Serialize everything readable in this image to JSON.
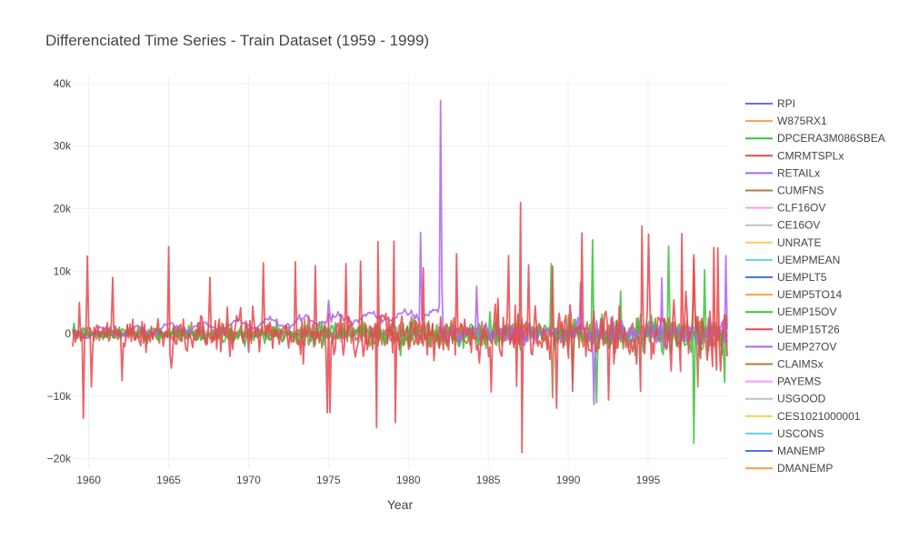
{
  "chart_data": {
    "type": "line",
    "title": "Differenciated Time Series - Train Dataset (1959 - 1999)",
    "xlabel": "Year",
    "ylabel": "",
    "xlim": [
      1959.0,
      1999.95
    ],
    "ylim": [
      -21500,
      41000
    ],
    "x_ticks": [
      {
        "value": 1960,
        "label": "1960"
      },
      {
        "value": 1965,
        "label": "1965"
      },
      {
        "value": 1970,
        "label": "1970"
      },
      {
        "value": 1975,
        "label": "1975"
      },
      {
        "value": 1980,
        "label": "1980"
      },
      {
        "value": 1985,
        "label": "1985"
      },
      {
        "value": 1990,
        "label": "1990"
      },
      {
        "value": 1995,
        "label": "1995"
      }
    ],
    "y_ticks": [
      {
        "value": -20000,
        "label": "−20k"
      },
      {
        "value": -10000,
        "label": "−10k"
      },
      {
        "value": 0,
        "label": "0"
      },
      {
        "value": 10000,
        "label": "10k"
      },
      {
        "value": 20000,
        "label": "20k"
      },
      {
        "value": 30000,
        "label": "30k"
      },
      {
        "value": 40000,
        "label": "40k"
      }
    ],
    "grid": true,
    "legend_position": "right",
    "series": [
      {
        "name": "RPI",
        "color": "#636efa",
        "amplitude": 60,
        "points": []
      },
      {
        "name": "W875RX1",
        "color": "#fba04a",
        "amplitude": 60,
        "points": []
      },
      {
        "name": "DPCERA3M086SBEA",
        "color": "#3cc13c",
        "amplitude": 2500,
        "points": [
          {
            "x": 1988.9,
            "y": 11200
          },
          {
            "x": 1991.5,
            "y": 15000
          },
          {
            "x": 1991.8,
            "y": -11000
          },
          {
            "x": 1996.3,
            "y": 14000
          },
          {
            "x": 1997.9,
            "y": -17500
          },
          {
            "x": 1999.8,
            "y": -7800
          },
          {
            "x": 1979.5,
            "y": -3500
          },
          {
            "x": 1985.6,
            "y": 4500
          },
          {
            "x": 1993.3,
            "y": 6800
          },
          {
            "x": 1998.5,
            "y": 10200
          },
          {
            "x": 1990.3,
            "y": -7600
          }
        ]
      },
      {
        "name": "CMRMTSPLx",
        "color": "#e8484c",
        "amplitude": 4500,
        "points": [
          {
            "x": 1959.4,
            "y": 5000
          },
          {
            "x": 1959.7,
            "y": -13500
          },
          {
            "x": 1959.9,
            "y": 12400
          },
          {
            "x": 1960.2,
            "y": -8500
          },
          {
            "x": 1961.5,
            "y": 9000
          },
          {
            "x": 1962.1,
            "y": -7500
          },
          {
            "x": 1965.0,
            "y": 13900
          },
          {
            "x": 1965.2,
            "y": -5500
          },
          {
            "x": 1967.6,
            "y": 9000
          },
          {
            "x": 1970.9,
            "y": 11300
          },
          {
            "x": 1972.9,
            "y": 11500
          },
          {
            "x": 1974.2,
            "y": 10900
          },
          {
            "x": 1974.9,
            "y": -12600
          },
          {
            "x": 1975.1,
            "y": -12600
          },
          {
            "x": 1976.1,
            "y": 11200
          },
          {
            "x": 1977.0,
            "y": 11600
          },
          {
            "x": 1978.0,
            "y": -15000
          },
          {
            "x": 1978.1,
            "y": 14700
          },
          {
            "x": 1979.1,
            "y": 14800
          },
          {
            "x": 1979.2,
            "y": -14200
          },
          {
            "x": 1980.9,
            "y": 10500
          },
          {
            "x": 1983.0,
            "y": 12800
          },
          {
            "x": 1985.2,
            "y": -9300
          },
          {
            "x": 1986.3,
            "y": 12500
          },
          {
            "x": 1986.8,
            "y": -8400
          },
          {
            "x": 1987.0,
            "y": 21000
          },
          {
            "x": 1987.1,
            "y": -19000
          },
          {
            "x": 1987.5,
            "y": 11000
          },
          {
            "x": 1989.0,
            "y": 10800
          },
          {
            "x": 1990.3,
            "y": -9200
          },
          {
            "x": 1990.9,
            "y": 16100
          },
          {
            "x": 1992.5,
            "y": 11800
          },
          {
            "x": 1994.6,
            "y": 17200
          },
          {
            "x": 1995.0,
            "y": 15900
          },
          {
            "x": 1997.1,
            "y": 16000
          },
          {
            "x": 1997.9,
            "y": 12600
          },
          {
            "x": 1999.1,
            "y": 13800
          },
          {
            "x": 1999.4,
            "y": 13700
          },
          {
            "x": 1992.5,
            "y": -10600
          },
          {
            "x": 1994.5,
            "y": -9200
          },
          {
            "x": 1989.3,
            "y": -11900
          }
        ]
      },
      {
        "name": "RETAILx",
        "color": "#ab63fa",
        "amplitude": 1500,
        "points": [
          {
            "x": 1975.0,
            "y": 5300
          },
          {
            "x": 1980.8,
            "y": 16200
          },
          {
            "x": 1982.0,
            "y": 37300
          },
          {
            "x": 1982.1,
            "y": 7500
          },
          {
            "x": 1984.3,
            "y": 7600
          },
          {
            "x": 1999.9,
            "y": 12500
          },
          {
            "x": 1995.9,
            "y": 8900
          },
          {
            "x": 1990.8,
            "y": 8200
          },
          {
            "x": 1991.6,
            "y": -11300
          }
        ]
      },
      {
        "name": "CUMFNS",
        "color": "#b5784a",
        "amplitude": 2000,
        "points": [
          {
            "x": 1989.0,
            "y": -10200
          },
          {
            "x": 1997.9,
            "y": 12100
          },
          {
            "x": 1998.1,
            "y": -8500
          }
        ]
      },
      {
        "name": "CLF16OV",
        "color": "#ff97ff",
        "amplitude": 1300,
        "points": []
      },
      {
        "name": "CE16OV",
        "color": "#c0c0c0",
        "amplitude": 900,
        "points": []
      },
      {
        "name": "UNRATE",
        "color": "#fecb52",
        "amplitude": 40,
        "points": []
      },
      {
        "name": "UEMPMEAN",
        "color": "#5fd3f3",
        "amplitude": 40,
        "points": []
      },
      {
        "name": "UEMPLT5",
        "color": "#4d72f0",
        "amplitude": 150,
        "points": []
      },
      {
        "name": "UEMP5TO14",
        "color": "#fba04a",
        "amplitude": 150,
        "points": []
      },
      {
        "name": "UEMP15OV",
        "color": "#3cc13c",
        "amplitude": 200,
        "points": []
      },
      {
        "name": "UEMP15T26",
        "color": "#e8484c",
        "amplitude": 150,
        "points": []
      },
      {
        "name": "UEMP27OV",
        "color": "#ab63fa",
        "amplitude": 150,
        "points": []
      },
      {
        "name": "CLAIMSx",
        "color": "#b5784a",
        "amplitude": 2000,
        "points": []
      },
      {
        "name": "PAYEMS",
        "color": "#ff97ff",
        "amplitude": 300,
        "points": []
      },
      {
        "name": "USGOOD",
        "color": "#c0c0c0",
        "amplitude": 150,
        "points": []
      },
      {
        "name": "CES1021000001",
        "color": "#fecb52",
        "amplitude": 40,
        "points": []
      },
      {
        "name": "USCONS",
        "color": "#5fd3f3",
        "amplitude": 80,
        "points": []
      },
      {
        "name": "MANEMP",
        "color": "#4d72f0",
        "amplitude": 100,
        "points": []
      },
      {
        "name": "DMANEMP",
        "color": "#fba04a",
        "amplitude": 80,
        "points": []
      }
    ]
  }
}
